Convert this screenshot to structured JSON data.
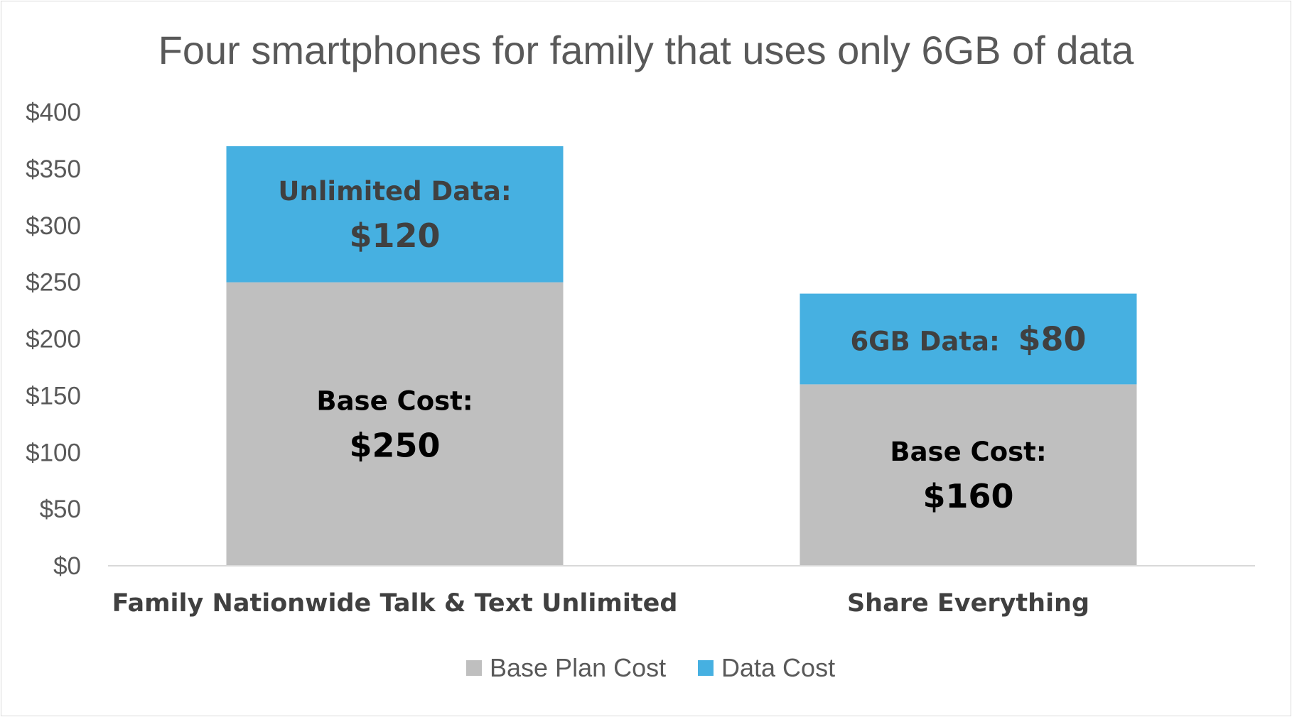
{
  "chart_data": {
    "type": "bar",
    "stacked": true,
    "title": "Four smartphones for family that uses only 6GB of data",
    "xlabel": "",
    "ylabel": "",
    "ylim": [
      0,
      400
    ],
    "y_ticks": [
      "$0",
      "$50",
      "$100",
      "$150",
      "$200",
      "$250",
      "$300",
      "$350",
      "$400"
    ],
    "y_tick_values": [
      0,
      50,
      100,
      150,
      200,
      250,
      300,
      350,
      400
    ],
    "grid": false,
    "legend_position": "bottom",
    "categories": [
      "Family Nationwide Talk & Text Unlimited",
      "Share Everything"
    ],
    "series": [
      {
        "name": "Base Plan Cost",
        "color": "#bfbfbf",
        "values": [
          250,
          160
        ],
        "labels": [
          {
            "line1": "Base Cost:",
            "line2": "$250"
          },
          {
            "line1": "Base Cost:",
            "line2": "$160"
          }
        ]
      },
      {
        "name": "Data Cost",
        "color": "#46b0e1",
        "values": [
          120,
          80
        ],
        "labels": [
          {
            "line1": "Unlimited Data:",
            "line2": "$120"
          },
          {
            "line1": "6GB Data:",
            "line2": "$80"
          }
        ]
      }
    ]
  }
}
